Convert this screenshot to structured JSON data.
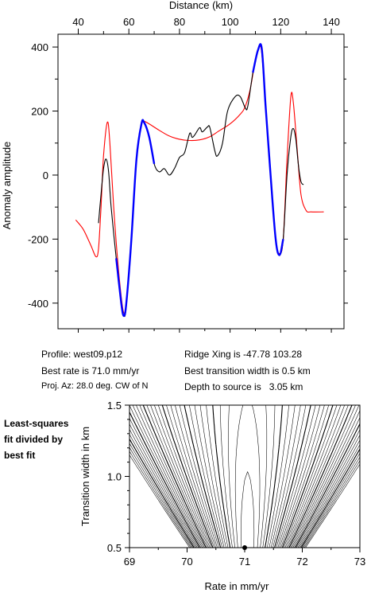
{
  "info": {
    "profile": "Profile: west09.p12",
    "best_rate": "Best rate is 71.0 mm/yr",
    "proj_az": "Proj. Az: 28.0 deg. CW of N",
    "ridge_xing": "Ridge Xing is -47.78 103.28",
    "best_width": "Best transition width is 0.5 km",
    "depth": "Depth to source is   3.05 km"
  },
  "side_note": [
    "Least-squares",
    "fit divided by",
    "best fit"
  ],
  "colors": {
    "observed": "#000000",
    "model": "#ff0000",
    "fit_window": "#0000ff",
    "contour": "#000000"
  },
  "chart_data": [
    {
      "type": "line",
      "xlabel": "Distance (km)",
      "ylabel": "Anomaly amplitude",
      "xlim": [
        32,
        145
      ],
      "ylim": [
        -480,
        440
      ],
      "xticks": [
        40,
        60,
        80,
        100,
        120,
        140
      ],
      "yticks": [
        -400,
        -200,
        0,
        200,
        400
      ],
      "x_axis_position": "top",
      "series": [
        {
          "color": "#ff0000",
          "points": [
            [
              39,
              -140
            ],
            [
              42,
              -170
            ],
            [
              45,
              -220
            ],
            [
              47,
              -255
            ],
            [
              48,
              -230
            ],
            [
              49,
              -100
            ],
            [
              50,
              60
            ],
            [
              51.5,
              165
            ],
            [
              52.5,
              100
            ],
            [
              54,
              -100
            ],
            [
              55.5,
              -260
            ],
            [
              57,
              -380
            ],
            [
              58,
              -430
            ],
            [
              59,
              -400
            ],
            [
              61,
              -200
            ],
            [
              63,
              50
            ],
            [
              65,
              160
            ],
            [
              66,
              168
            ],
            [
              68,
              160
            ],
            [
              72,
              140
            ],
            [
              76,
              122
            ],
            [
              80,
              112
            ],
            [
              84,
              108
            ],
            [
              88,
              110
            ],
            [
              92,
              120
            ],
            [
              96,
              140
            ],
            [
              100,
              160
            ],
            [
              104,
              190
            ],
            [
              106,
              215
            ],
            [
              108,
              270
            ],
            [
              110,
              360
            ],
            [
              111.5,
              400
            ],
            [
              112.5,
              380
            ],
            [
              114,
              220
            ],
            [
              116,
              0
            ],
            [
              118,
              -200
            ],
            [
              119.5,
              -245
            ],
            [
              121,
              -200
            ],
            [
              122.5,
              50
            ],
            [
              124,
              245
            ],
            [
              125,
              225
            ],
            [
              126.5,
              80
            ],
            [
              128,
              -60
            ],
            [
              130,
              -110
            ],
            [
              132,
              -115
            ],
            [
              137,
              -115
            ]
          ]
        },
        {
          "color": "#000000",
          "points": [
            [
              48,
              -150
            ],
            [
              49,
              -60
            ],
            [
              50,
              20
            ],
            [
              51,
              50
            ],
            [
              52,
              10
            ],
            [
              53,
              -100
            ],
            [
              55,
              -260
            ],
            [
              57,
              -400
            ],
            [
              58,
              -440
            ],
            [
              59,
              -410
            ],
            [
              61,
              -200
            ],
            [
              63,
              50
            ],
            [
              65,
              160
            ],
            [
              66,
              165
            ],
            [
              68,
              120
            ],
            [
              70,
              35
            ],
            [
              72,
              10
            ],
            [
              74,
              20
            ],
            [
              76,
              0
            ],
            [
              78,
              20
            ],
            [
              80,
              55
            ],
            [
              82,
              70
            ],
            [
              84,
              130
            ],
            [
              85,
              118
            ],
            [
              86,
              125
            ],
            [
              88,
              148
            ],
            [
              89,
              135
            ],
            [
              91,
              150
            ],
            [
              92,
              148
            ],
            [
              94,
              75
            ],
            [
              95,
              60
            ],
            [
              97,
              100
            ],
            [
              99,
              200
            ],
            [
              102,
              245
            ],
            [
              104,
              245
            ],
            [
              106,
              210
            ],
            [
              107,
              215
            ],
            [
              109,
              320
            ],
            [
              111,
              390
            ],
            [
              112.5,
              395
            ],
            [
              114,
              220
            ],
            [
              116,
              0
            ],
            [
              118,
              -200
            ],
            [
              119.5,
              -250
            ],
            [
              121,
              -200
            ],
            [
              122.5,
              0
            ],
            [
              124,
              120
            ],
            [
              125,
              145
            ],
            [
              126,
              110
            ],
            [
              127,
              30
            ],
            [
              128,
              -20
            ],
            [
              129,
              -30
            ]
          ]
        },
        {
          "color": "#0000ff",
          "points": [
            [
              55,
              -260
            ],
            [
              57,
              -400
            ],
            [
              58,
              -440
            ],
            [
              59,
              -400
            ],
            [
              61,
              -200
            ],
            [
              63,
              50
            ],
            [
              65,
              160
            ],
            [
              66,
              165
            ],
            [
              68,
              120
            ],
            [
              70,
              35
            ],
            [
              109,
              320
            ],
            [
              111,
              390
            ],
            [
              112.5,
              395
            ],
            [
              114,
              220
            ],
            [
              116,
              0
            ],
            [
              118,
              -200
            ],
            [
              119.5,
              -250
            ],
            [
              121,
              -200
            ]
          ]
        }
      ]
    },
    {
      "type": "contour",
      "xlabel": "Rate in mm/yr",
      "ylabel": "Transition width in km",
      "xlim": [
        69,
        73
      ],
      "ylim": [
        0.5,
        1.5
      ],
      "xticks": [
        69,
        70,
        71,
        72,
        73
      ],
      "yticks": [
        0.5,
        1.0,
        1.5
      ],
      "best_fit": {
        "rate": 71.0,
        "width": 0.5
      }
    }
  ]
}
